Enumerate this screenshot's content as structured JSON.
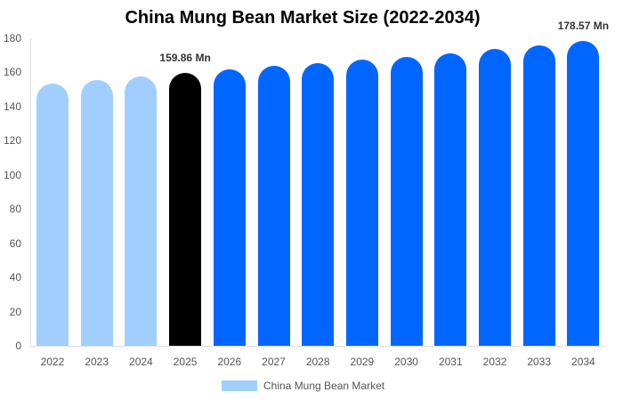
{
  "chart_data": {
    "type": "bar",
    "title": "China Mung Bean Market Size (2022-2034)",
    "xlabel": "",
    "ylabel": "",
    "ylim": [
      0,
      180
    ],
    "yticks": [
      0,
      20,
      40,
      60,
      80,
      100,
      120,
      140,
      160,
      180
    ],
    "categories": [
      "2022",
      "2023",
      "2024",
      "2025",
      "2026",
      "2027",
      "2028",
      "2029",
      "2030",
      "2031",
      "2032",
      "2033",
      "2034"
    ],
    "series": [
      {
        "name": "China Mung Bean Market",
        "values": [
          153.5,
          155.6,
          157.6,
          159.86,
          161.8,
          163.7,
          165.6,
          167.5,
          169.3,
          171.3,
          173.6,
          176.0,
          178.57
        ]
      }
    ],
    "bar_colors": [
      "#a0cfff",
      "#a0cfff",
      "#a0cfff",
      "#000000",
      "#0066ff",
      "#0066ff",
      "#0066ff",
      "#0066ff",
      "#0066ff",
      "#0066ff",
      "#0066ff",
      "#0066ff",
      "#0066ff"
    ],
    "annotations": [
      {
        "index": 3,
        "text": "159.86 Mn"
      },
      {
        "index": 12,
        "text": "178.57 Mn"
      }
    ],
    "legend": {
      "position": "bottom",
      "label": "China Mung Bean Market",
      "color": "#a0cfff"
    },
    "grid": false
  }
}
